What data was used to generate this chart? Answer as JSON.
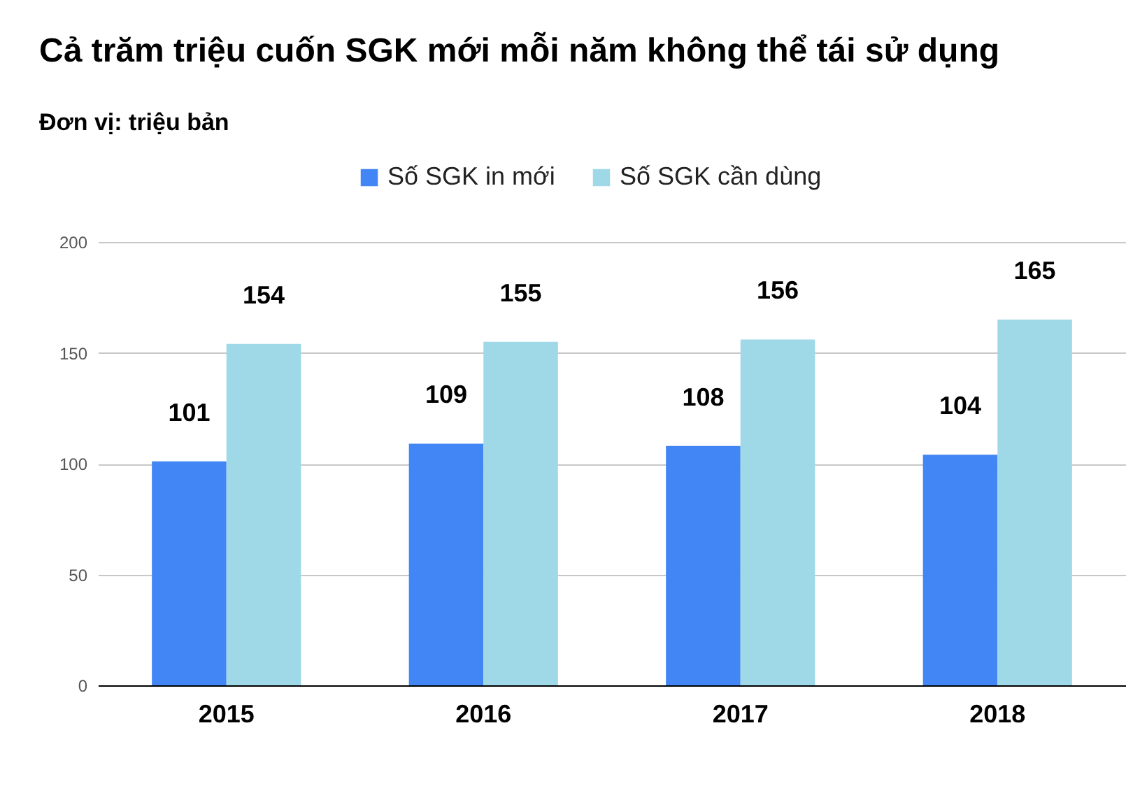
{
  "chart_data": {
    "type": "bar",
    "title": "Cả trăm triệu cuốn SGK mới mỗi năm không thể tái sử dụng",
    "subtitle": "Đơn vị: triệu bản",
    "categories": [
      "2015",
      "2016",
      "2017",
      "2018"
    ],
    "series": [
      {
        "name": "Số SGK in mới",
        "color": "#4285f4",
        "values": [
          101,
          109,
          108,
          104
        ]
      },
      {
        "name": "Số SGK cần dùng",
        "color": "#9fd9e8",
        "values": [
          154,
          155,
          156,
          165
        ]
      }
    ],
    "ylim": [
      0,
      200
    ],
    "yticks": [
      0,
      50,
      100,
      150,
      200
    ],
    "grid": "y",
    "legend": "top",
    "data_labels": true
  }
}
